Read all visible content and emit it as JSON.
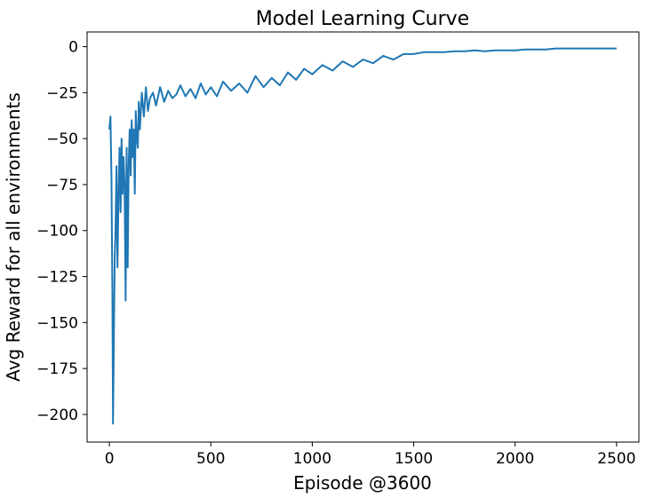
{
  "chart_data": {
    "type": "line",
    "title": "Model Learning Curve",
    "xlabel": "Episode @3600",
    "ylabel": "Avg Reward for all environments",
    "xlim": [
      -110,
      2610
    ],
    "ylim": [
      -215,
      8
    ],
    "xticks": [
      0,
      500,
      1000,
      1500,
      2000,
      2500
    ],
    "yticks": [
      0,
      -25,
      -50,
      -75,
      -100,
      -125,
      -150,
      -175,
      -200
    ],
    "grid": false,
    "legend": "none",
    "series": [
      {
        "color": "#1f77b4",
        "x": [
          0,
          5,
          10,
          15,
          18,
          22,
          26,
          30,
          35,
          40,
          45,
          50,
          55,
          60,
          65,
          70,
          75,
          80,
          85,
          90,
          95,
          100,
          105,
          110,
          115,
          120,
          125,
          130,
          135,
          140,
          145,
          150,
          160,
          170,
          180,
          190,
          200,
          215,
          230,
          250,
          270,
          290,
          310,
          330,
          350,
          375,
          400,
          425,
          450,
          475,
          500,
          530,
          560,
          600,
          640,
          680,
          720,
          760,
          800,
          840,
          880,
          920,
          960,
          1000,
          1050,
          1100,
          1150,
          1200,
          1250,
          1300,
          1350,
          1400,
          1450,
          1500,
          1550,
          1600,
          1650,
          1700,
          1750,
          1800,
          1850,
          1900,
          1950,
          2000,
          2050,
          2100,
          2150,
          2200,
          2250,
          2300,
          2350,
          2400,
          2450,
          2500
        ],
        "y": [
          -45,
          -38,
          -70,
          -135,
          -205,
          -160,
          -115,
          -100,
          -65,
          -120,
          -80,
          -55,
          -90,
          -50,
          -80,
          -60,
          -75,
          -138,
          -55,
          -120,
          -65,
          -45,
          -70,
          -40,
          -60,
          -45,
          -80,
          -35,
          -50,
          -55,
          -30,
          -45,
          -25,
          -38,
          -22,
          -35,
          -28,
          -25,
          -32,
          -22,
          -30,
          -24,
          -28,
          -26,
          -21,
          -27,
          -23,
          -28,
          -20,
          -26,
          -22,
          -27,
          -19,
          -24,
          -20,
          -25,
          -16,
          -22,
          -17,
          -21,
          -14,
          -18,
          -12,
          -15,
          -10,
          -13,
          -8,
          -11,
          -7,
          -9,
          -5,
          -7,
          -4,
          -4,
          -3,
          -3,
          -3,
          -2.5,
          -2.5,
          -2,
          -2.5,
          -2,
          -2,
          -2,
          -1.5,
          -1.5,
          -1.5,
          -1,
          -1,
          -1,
          -1,
          -1,
          -1,
          -1
        ]
      }
    ]
  }
}
